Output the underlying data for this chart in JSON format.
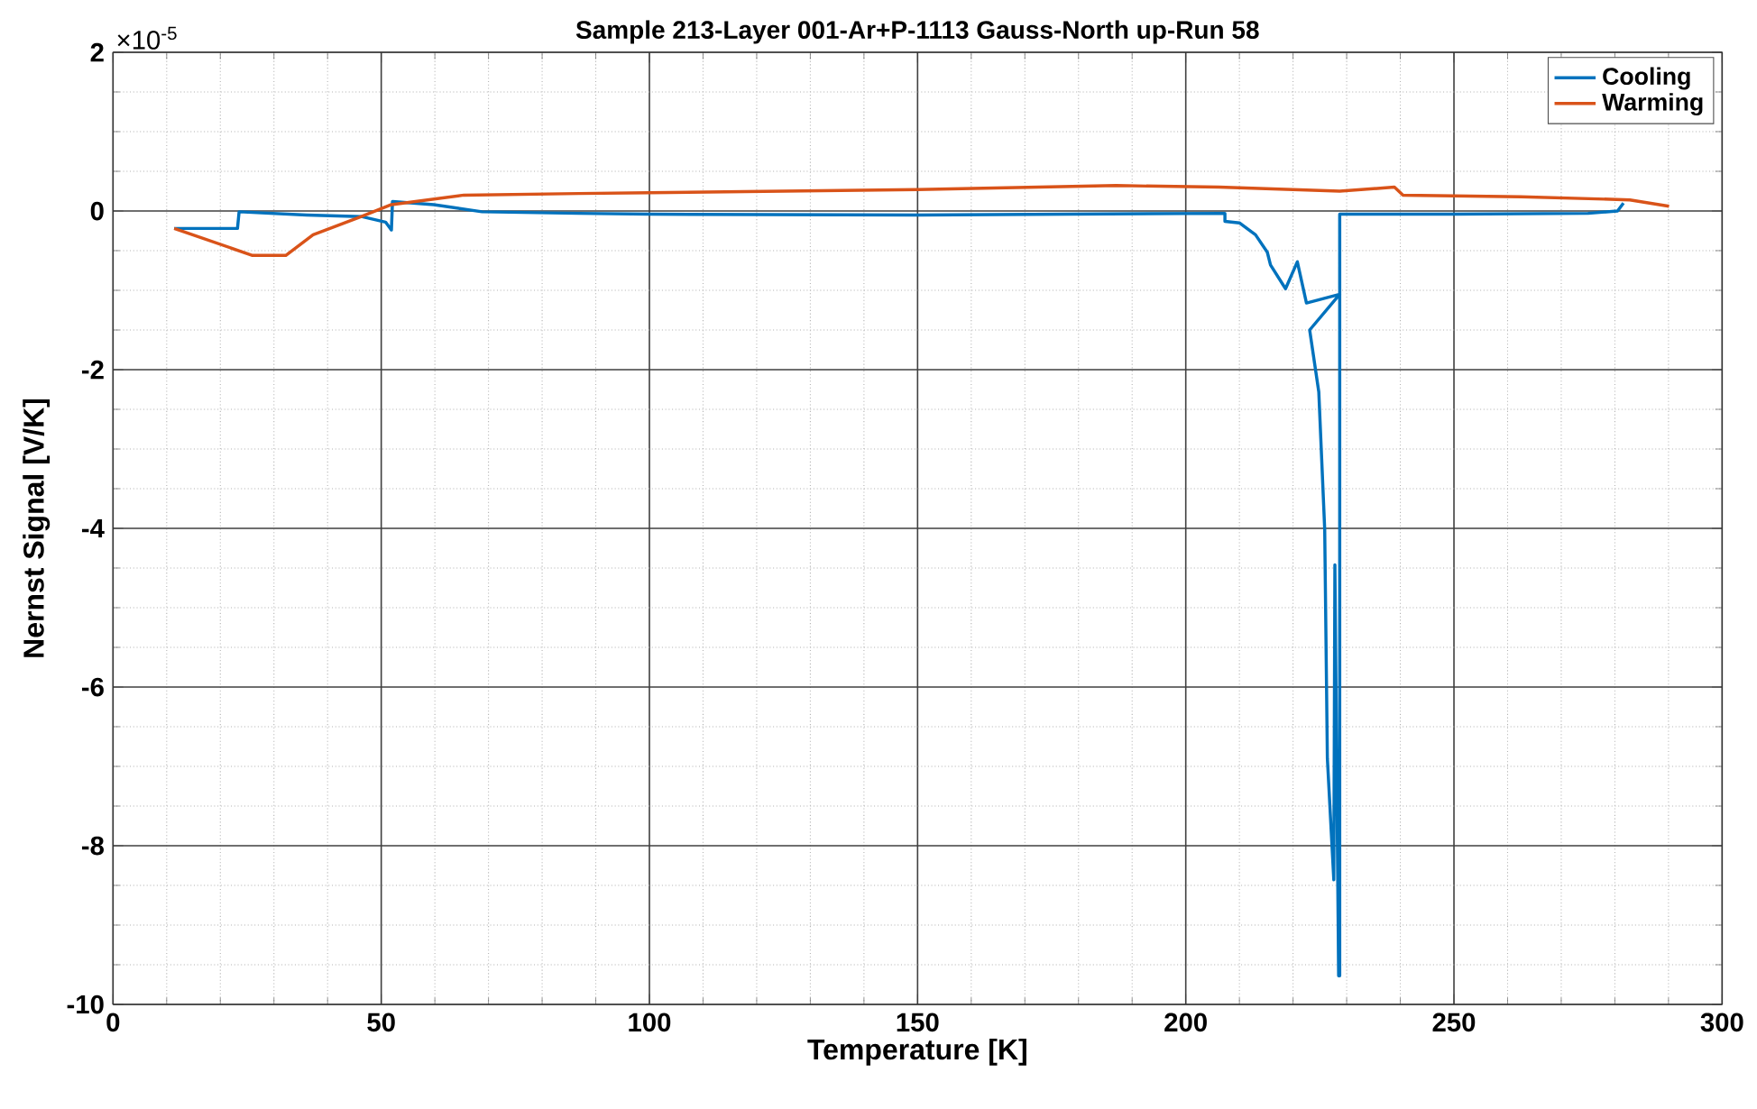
{
  "chart_data": {
    "type": "line",
    "title": "Sample 213-Layer 001-Ar+P-1113 Gauss-North up-Run 58",
    "xlabel": "Temperature [K]",
    "ylabel": "Nernst Signal [V/K]",
    "annotations": [
      "×10$^{-5}$"
    ],
    "xlim": [
      0,
      300
    ],
    "xticks": [
      0,
      50,
      100,
      150,
      200,
      250,
      300
    ],
    "ylim": [
      -10,
      2
    ],
    "yticks": [
      -10,
      -8,
      -6,
      -4,
      -2,
      0,
      2
    ],
    "grid": true,
    "legend": "top right",
    "marker": "none",
    "line_style": "solid",
    "series": [
      {
        "name": "Cooling",
        "color": "#0072bd",
        "x": [
          281.6,
          280.5,
          275,
          250,
          228.7,
          228.7,
          228.5,
          227.8,
          227.6,
          226.4,
          225.9,
          224.8,
          223.1,
          228.7,
          222.5,
          220.8,
          218.6,
          215.8,
          215.2,
          213,
          210,
          207.3,
          207.3,
          150,
          100,
          86.8,
          68.8,
          59.8,
          52.1,
          51.9,
          50.8,
          46.3,
          36.1,
          23.5,
          23.2,
          11.4
        ],
        "values": [
          0.1,
          0.0,
          -0.03,
          -0.04,
          -0.04,
          -9.64,
          -9.64,
          -4.46,
          -8.43,
          -6.9,
          -4.01,
          -2.28,
          -1.5,
          -1.05,
          -1.16,
          -0.64,
          -0.98,
          -0.68,
          -0.52,
          -0.3,
          -0.15,
          -0.13,
          -0.03,
          -0.05,
          -0.04,
          -0.03,
          -0.01,
          0.08,
          0.12,
          -0.24,
          -0.14,
          -0.07,
          -0.05,
          -0.01,
          -0.22,
          -0.22
        ]
      },
      {
        "name": "Warming",
        "color": "#d95319",
        "x": [
          11.4,
          26,
          32.2,
          37.3,
          46.3,
          51.9,
          65.4,
          86.8,
          100,
          150,
          187,
          206.2,
          228.7,
          238.9,
          240.5,
          262.5,
          282.8,
          290.1
        ],
        "values": [
          -0.22,
          -0.56,
          -0.56,
          -0.3,
          -0.07,
          0.08,
          0.2,
          0.22,
          0.23,
          0.27,
          0.32,
          0.3,
          0.25,
          0.3,
          0.2,
          0.18,
          0.14,
          0.06
        ]
      }
    ]
  }
}
